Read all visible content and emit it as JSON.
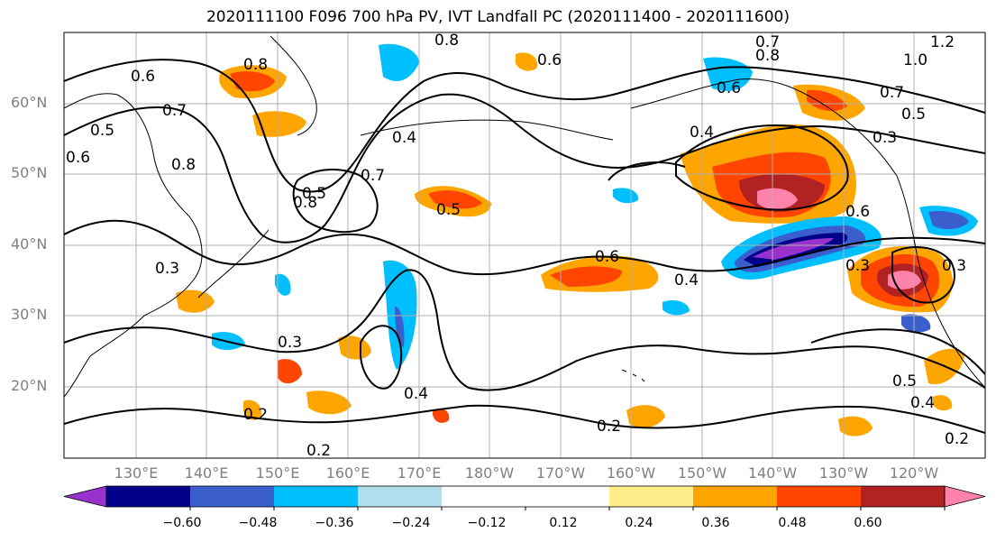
{
  "title": "2020111100 F096 700 hPa PV, IVT Landfall PC (2020111400 - 2020111600)",
  "lat_labels": [
    "60°N",
    "50°N",
    "40°N",
    "30°N",
    "20°N"
  ],
  "lon_labels": [
    "130°E",
    "140°E",
    "150°E",
    "160°E",
    "170°E",
    "180°W",
    "170°W",
    "160°W",
    "150°W",
    "140°W",
    "130°W",
    "120°W"
  ],
  "colorbar": {
    "colors": [
      "#9932CC",
      "#00008B",
      "#3A5FCD",
      "#00BFFF",
      "#B2DFEE",
      "#FFFFFF",
      "#FFFFFF",
      "#FFEC8B",
      "#FFA500",
      "#FF4500",
      "#B22222",
      "#FF82AB"
    ],
    "tick_labels": [
      "−0.60",
      "−0.48",
      "−0.36",
      "−0.24",
      "−0.12",
      "0.12",
      "0.24",
      "0.36",
      "0.48",
      "0.60"
    ]
  },
  "contour_labels": [
    "0.8",
    "0.7",
    "1.2",
    "1.0",
    "0.6",
    "0.8",
    "0.7",
    "0.5",
    "0.3",
    "0.4",
    "0.6",
    "0.4",
    "0.5",
    "0.8",
    "0.7",
    "0.6",
    "0.5",
    "0.7",
    "0.8",
    "0.6",
    "0.6",
    "0.5",
    "0.3",
    "0.3",
    "0.4",
    "0.3",
    "0.2",
    "0.2",
    "0.2",
    "0.5",
    "0.4",
    "0.2",
    "0.8",
    "0.4",
    "0.6",
    "0.3"
  ]
}
